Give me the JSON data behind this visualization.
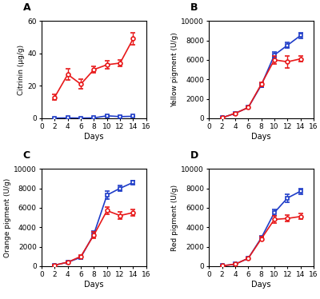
{
  "days": [
    2,
    4,
    6,
    8,
    10,
    12,
    14
  ],
  "panel_A": {
    "title": "A",
    "ylabel": "Citrinin (μg/g)",
    "ylim": [
      0,
      60
    ],
    "yticks": [
      0,
      20,
      40,
      60
    ],
    "red_mean": [
      13,
      27,
      21,
      30,
      33,
      34,
      49
    ],
    "red_err": [
      1.5,
      3.5,
      3.0,
      2.0,
      2.5,
      2.0,
      3.5
    ],
    "blue_mean": [
      0.1,
      0.2,
      0.1,
      0.2,
      1.5,
      1.0,
      1.2
    ],
    "blue_err": [
      0.05,
      0.05,
      0.05,
      0.05,
      0.4,
      0.3,
      0.3
    ]
  },
  "panel_B": {
    "title": "B",
    "ylabel": "Yellow pigment (U/g)",
    "ylim": [
      0,
      10000
    ],
    "yticks": [
      0,
      2000,
      4000,
      6000,
      8000,
      10000
    ],
    "red_mean": [
      50,
      500,
      1100,
      3500,
      6000,
      5800,
      6100
    ],
    "red_err": [
      20,
      60,
      100,
      200,
      400,
      600,
      300
    ],
    "blue_mean": [
      50,
      500,
      1100,
      3400,
      6500,
      7500,
      8500
    ],
    "blue_err": [
      20,
      60,
      100,
      200,
      300,
      300,
      300
    ]
  },
  "panel_C": {
    "title": "C",
    "ylabel": "Orange pigment (U/g)",
    "ylim": [
      0,
      10000
    ],
    "yticks": [
      0,
      2000,
      4000,
      6000,
      8000,
      10000
    ],
    "red_mean": [
      100,
      400,
      1000,
      3200,
      5700,
      5200,
      5500
    ],
    "red_err": [
      30,
      80,
      150,
      300,
      400,
      400,
      300
    ],
    "blue_mean": [
      100,
      400,
      900,
      3300,
      7300,
      8000,
      8600
    ],
    "blue_err": [
      30,
      80,
      150,
      300,
      400,
      300,
      200
    ]
  },
  "panel_D": {
    "title": "D",
    "ylabel": "Red pigment (U/g)",
    "ylim": [
      0,
      10000
    ],
    "yticks": [
      0,
      2000,
      4000,
      6000,
      8000,
      10000
    ],
    "red_mean": [
      30,
      200,
      800,
      2800,
      4800,
      4900,
      5100
    ],
    "red_err": [
      10,
      40,
      100,
      200,
      350,
      350,
      300
    ],
    "blue_mean": [
      30,
      200,
      800,
      2900,
      5500,
      7000,
      7700
    ],
    "blue_err": [
      10,
      40,
      100,
      200,
      300,
      400,
      300
    ]
  },
  "red_color": "#E8191A",
  "blue_color": "#1F3DC8",
  "xlabel": "Days",
  "xlim": [
    0,
    16
  ],
  "xticks": [
    0,
    2,
    4,
    6,
    8,
    10,
    12,
    14,
    16
  ]
}
